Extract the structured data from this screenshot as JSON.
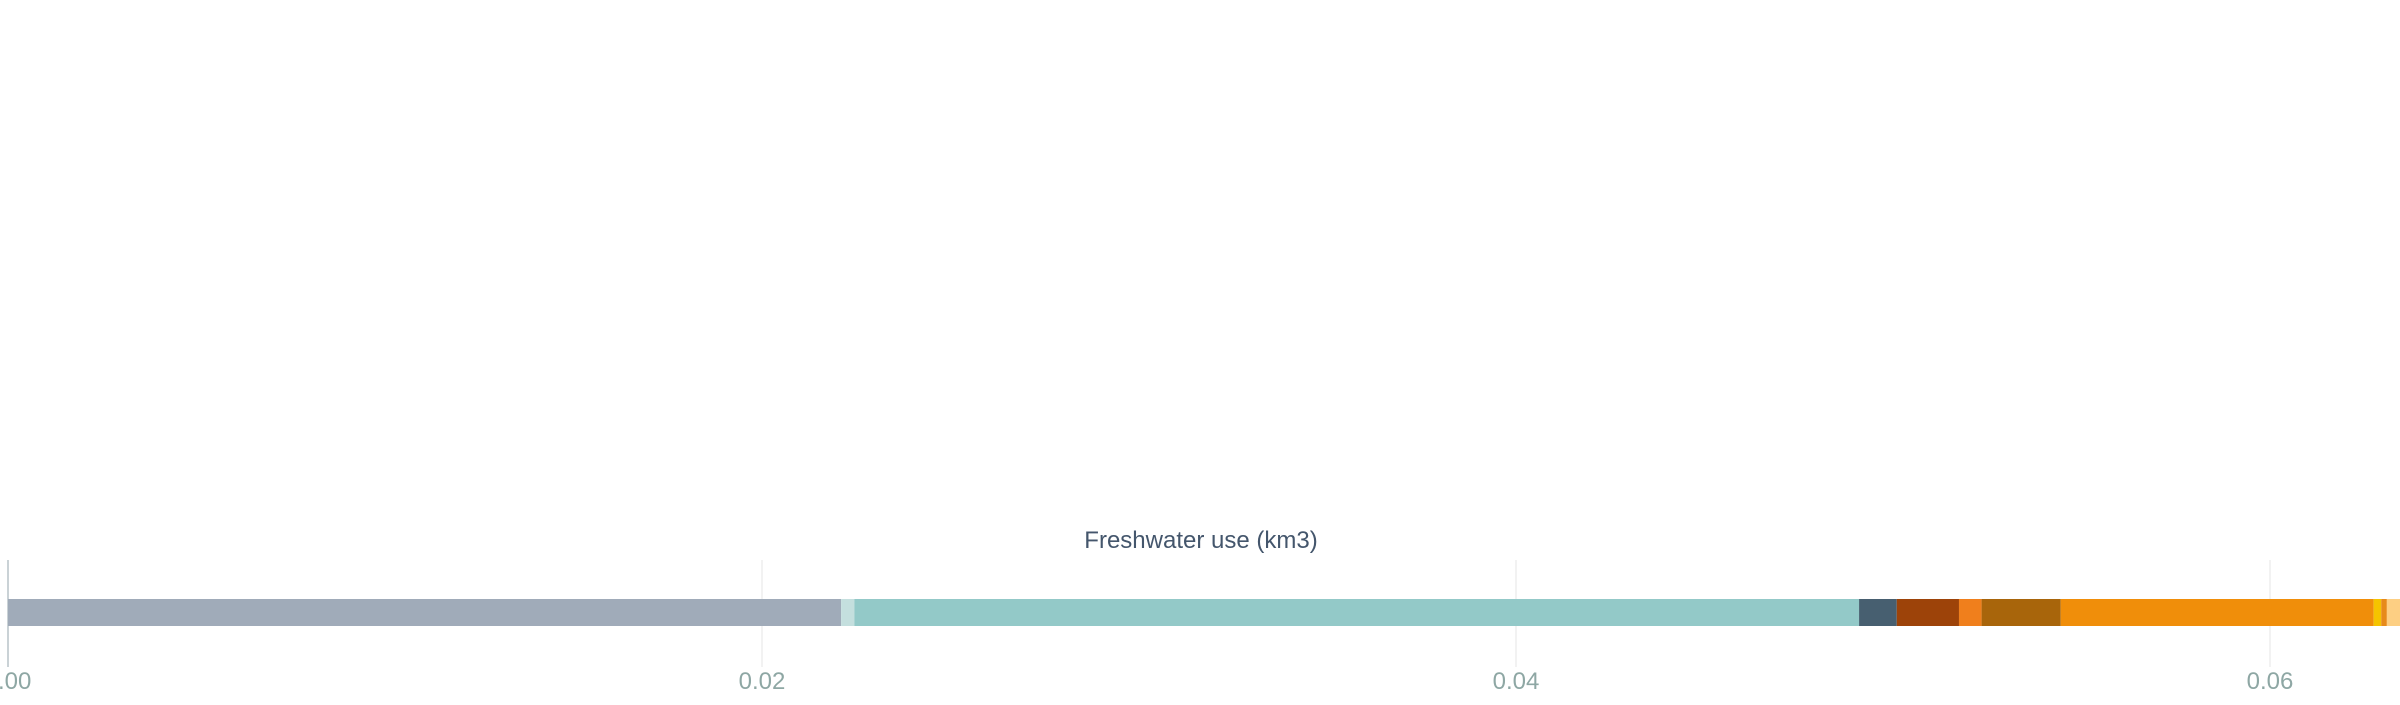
{
  "chart_data": {
    "type": "bar",
    "orientation": "horizontal",
    "stacked": true,
    "title": "",
    "xlabel": "Freshwater use (km3)",
    "ylabel": "",
    "xlim": [
      0,
      0.0635
    ],
    "grid": true,
    "legend": "none",
    "x_ticks": [
      {
        "value": 0,
        "label": "0.00"
      },
      {
        "value": 0.02,
        "label": "0.02"
      },
      {
        "value": 0.04,
        "label": "0.04"
      },
      {
        "value": 0.06,
        "label": "0.06"
      }
    ],
    "segments": [
      {
        "value": 0.0221,
        "color": "#a0abb9"
      },
      {
        "value": 0.00035,
        "color": "#c4dfde"
      },
      {
        "value": 0.02665,
        "color": "#93c9c8"
      },
      {
        "value": 0.001,
        "color": "#475f70"
      },
      {
        "value": 0.00165,
        "color": "#9d4309"
      },
      {
        "value": 0.0006,
        "color": "#f07f1c"
      },
      {
        "value": 0.0021,
        "color": "#a8650b"
      },
      {
        "value": 0.0083,
        "color": "#f08e0a"
      },
      {
        "value": 0.0002,
        "color": "#f5c400"
      },
      {
        "value": 0.00015,
        "color": "#e78a1a"
      },
      {
        "value": 0.0004,
        "color": "#fdcf83"
      }
    ]
  }
}
